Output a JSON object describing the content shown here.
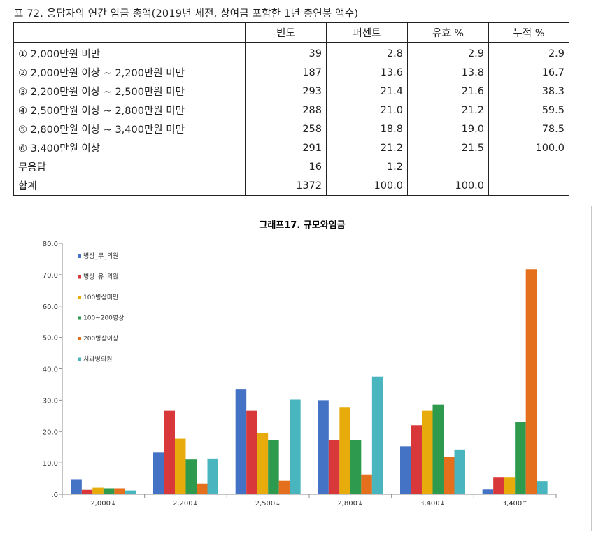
{
  "caption": "표 72. 응답자의 연간 임금 총액(2019년 세전, 상여금 포함한 1년 총연봉 액수)",
  "table": {
    "headers": [
      "",
      "빈도",
      "퍼센트",
      "유효 %",
      "누적 %"
    ],
    "rows": [
      {
        "label": "① 2,000만원 미만",
        "freq": "39",
        "pct": "2.8",
        "valid": "2.9",
        "cum": "2.9"
      },
      {
        "label": "② 2,000만원 이상 ~ 2,200만원 미만",
        "freq": "187",
        "pct": "13.6",
        "valid": "13.8",
        "cum": "16.7"
      },
      {
        "label": "③ 2,200만원 이상 ~ 2,500만원 미만",
        "freq": "293",
        "pct": "21.4",
        "valid": "21.6",
        "cum": "38.3"
      },
      {
        "label": "④ 2,500만원 이상 ~ 2,800만원 미만",
        "freq": "288",
        "pct": "21.0",
        "valid": "21.2",
        "cum": "59.5"
      },
      {
        "label": "⑤ 2,800만원 이상 ~ 3,400만원 미만",
        "freq": "258",
        "pct": "18.8",
        "valid": "19.0",
        "cum": "78.5"
      },
      {
        "label": "⑥ 3,400만원 이상",
        "freq": "291",
        "pct": "21.2",
        "valid": "21.5",
        "cum": "100.0"
      },
      {
        "label": "무응답",
        "freq": "16",
        "pct": "1.2",
        "valid": "",
        "cum": ""
      },
      {
        "label": "합계",
        "freq": "1372",
        "pct": "100.0",
        "valid": "100.0",
        "cum": ""
      }
    ]
  },
  "chart_data": {
    "type": "bar",
    "title": "그래프17. 규모와임금",
    "categories": [
      "2,000↓",
      "2,200↓",
      "2,500↓",
      "2,800↓",
      "3,400↓",
      "3,400↑"
    ],
    "yticks": [
      ".0",
      "10.0",
      "20.0",
      "30.0",
      "40.0",
      "50.0",
      "60.0",
      "70.0",
      "80.0"
    ],
    "ylim": [
      0,
      80
    ],
    "legend_position": "top-left",
    "grid": false,
    "series": [
      {
        "name": "병상_무_의원",
        "color": "#4472c4",
        "values": [
          4.8,
          13.3,
          33.4,
          30.0,
          15.3,
          1.5
        ]
      },
      {
        "name": "병상_유_의원",
        "color": "#d9383a",
        "values": [
          1.4,
          26.6,
          26.6,
          17.2,
          22.0,
          5.3
        ]
      },
      {
        "name": "100병상미만",
        "color": "#e8ab0c",
        "values": [
          2.1,
          17.7,
          19.4,
          27.8,
          26.6,
          5.3
        ]
      },
      {
        "name": "100~200병상",
        "color": "#2e9a4e",
        "values": [
          1.9,
          11.1,
          17.2,
          17.2,
          28.6,
          23.1
        ]
      },
      {
        "name": "200병상이상",
        "color": "#e46f1d",
        "values": [
          1.9,
          3.4,
          4.3,
          6.3,
          11.9,
          71.7
        ]
      },
      {
        "name": "치과병의원",
        "color": "#49b5bf",
        "values": [
          1.2,
          11.4,
          30.2,
          37.5,
          14.3,
          4.2
        ]
      }
    ]
  }
}
